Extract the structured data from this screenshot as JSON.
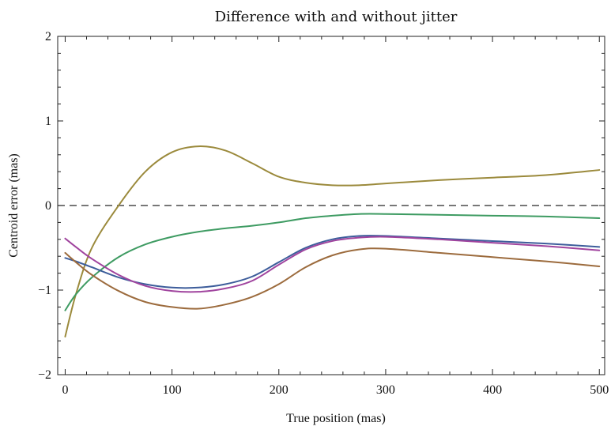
{
  "chart_data": {
    "type": "line",
    "title": "Difference with and without jitter",
    "xlabel": "True position (mas)",
    "ylabel": "Centroid error (mas)",
    "xlim": [
      -7,
      505
    ],
    "ylim": [
      -2,
      2
    ],
    "xticks": [
      0,
      100,
      200,
      300,
      400,
      500
    ],
    "xtick_labels": [
      "0",
      "100",
      "200",
      "300",
      "400",
      "500"
    ],
    "yticks": [
      -2,
      -1,
      0,
      1,
      2
    ],
    "ytick_labels": [
      "−2",
      "−1",
      "0",
      "1",
      "2"
    ],
    "reference_line": {
      "y": 0,
      "style": "dashed",
      "color": "#808080"
    },
    "grid": false,
    "legend": "none",
    "series": [
      {
        "color": "#9b8a3c",
        "x": [
          0,
          10,
          25,
          50,
          75,
          100,
          125,
          150,
          175,
          200,
          225,
          250,
          275,
          300,
          350,
          400,
          450,
          500
        ],
        "y": [
          -1.55,
          -1.05,
          -0.5,
          0.0,
          0.4,
          0.63,
          0.7,
          0.65,
          0.5,
          0.34,
          0.27,
          0.24,
          0.24,
          0.26,
          0.3,
          0.33,
          0.36,
          0.42
        ]
      },
      {
        "color": "#3e9b62",
        "x": [
          0,
          10,
          25,
          50,
          75,
          100,
          125,
          150,
          175,
          200,
          225,
          250,
          275,
          300,
          350,
          400,
          450,
          500
        ],
        "y": [
          -1.24,
          -1.05,
          -0.85,
          -0.61,
          -0.46,
          -0.37,
          -0.31,
          -0.27,
          -0.24,
          -0.2,
          -0.15,
          -0.12,
          -0.1,
          -0.1,
          -0.11,
          -0.12,
          -0.13,
          -0.15
        ]
      },
      {
        "color": "#3d5d9b",
        "x": [
          0,
          10,
          25,
          50,
          75,
          100,
          125,
          150,
          175,
          200,
          225,
          250,
          275,
          300,
          350,
          400,
          450,
          500
        ],
        "y": [
          -0.62,
          -0.66,
          -0.73,
          -0.85,
          -0.93,
          -0.97,
          -0.97,
          -0.93,
          -0.84,
          -0.67,
          -0.5,
          -0.4,
          -0.36,
          -0.36,
          -0.39,
          -0.42,
          -0.45,
          -0.49
        ]
      },
      {
        "color": "#a0449e",
        "x": [
          0,
          10,
          25,
          50,
          75,
          100,
          125,
          150,
          175,
          200,
          225,
          250,
          275,
          300,
          350,
          400,
          450,
          500
        ],
        "y": [
          -0.39,
          -0.49,
          -0.63,
          -0.82,
          -0.95,
          -1.01,
          -1.02,
          -0.98,
          -0.89,
          -0.7,
          -0.52,
          -0.42,
          -0.38,
          -0.37,
          -0.4,
          -0.44,
          -0.48,
          -0.53
        ]
      },
      {
        "color": "#9c6b3d",
        "x": [
          0,
          10,
          25,
          50,
          75,
          100,
          125,
          150,
          175,
          200,
          225,
          250,
          275,
          300,
          350,
          400,
          450,
          500
        ],
        "y": [
          -0.56,
          -0.67,
          -0.82,
          -1.01,
          -1.14,
          -1.2,
          -1.22,
          -1.17,
          -1.08,
          -0.93,
          -0.73,
          -0.59,
          -0.52,
          -0.51,
          -0.56,
          -0.61,
          -0.66,
          -0.72
        ]
      }
    ]
  }
}
